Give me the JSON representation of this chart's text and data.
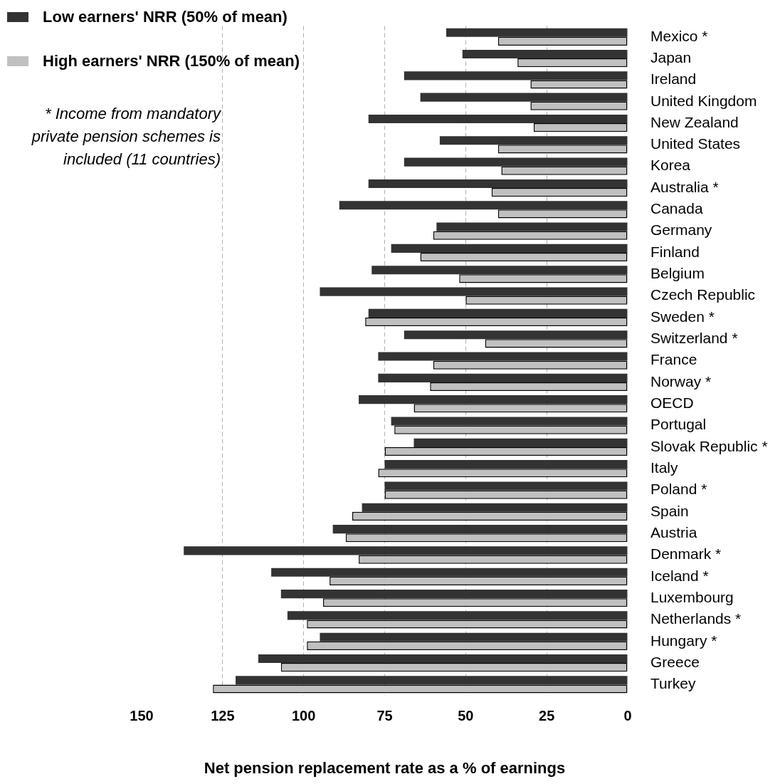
{
  "chart_data": {
    "type": "bar",
    "orientation": "horizontal",
    "xlabel": "Net pension replacement rate as a % of earnings",
    "categories": [
      "Mexico *",
      "Japan",
      "Ireland",
      "United Kingdom",
      "New Zealand",
      "United States",
      "Korea",
      "Australia *",
      "Canada",
      "Germany",
      "Finland",
      "Belgium",
      "Czech Republic",
      "Sweden *",
      "Switzerland *",
      "France",
      "Norway *",
      "OECD",
      "Portugal",
      "Slovak Republic *",
      "Italy",
      "Poland *",
      "Spain",
      "Austria",
      "Denmark *",
      "Iceland *",
      "Luxembourg",
      "Netherlands *",
      "Hungary *",
      "Greece",
      "Turkey"
    ],
    "series": [
      {
        "name": "Low earners' NRR (50% of mean)",
        "color": "#333333",
        "values": [
          56,
          51,
          69,
          64,
          80,
          58,
          69,
          80,
          89,
          59,
          73,
          79,
          95,
          80,
          69,
          77,
          77,
          83,
          73,
          66,
          75,
          75,
          82,
          91,
          137,
          110,
          107,
          105,
          95,
          114,
          121
        ]
      },
      {
        "name": "High earners' NRR (150% of mean)",
        "color": "#c0c0c0",
        "values": [
          40,
          34,
          30,
          30,
          29,
          40,
          39,
          42,
          40,
          60,
          64,
          52,
          50,
          81,
          44,
          60,
          61,
          66,
          72,
          75,
          77,
          75,
          85,
          87,
          83,
          92,
          94,
          99,
          99,
          107,
          128
        ]
      }
    ],
    "xlim": [
      150,
      0
    ],
    "xticks": [
      150,
      125,
      100,
      75,
      50,
      25,
      0
    ],
    "grid": "x",
    "legend": "top left",
    "annotations": [
      "* Income from mandatory private pension schemes is included (11 countries)"
    ]
  }
}
